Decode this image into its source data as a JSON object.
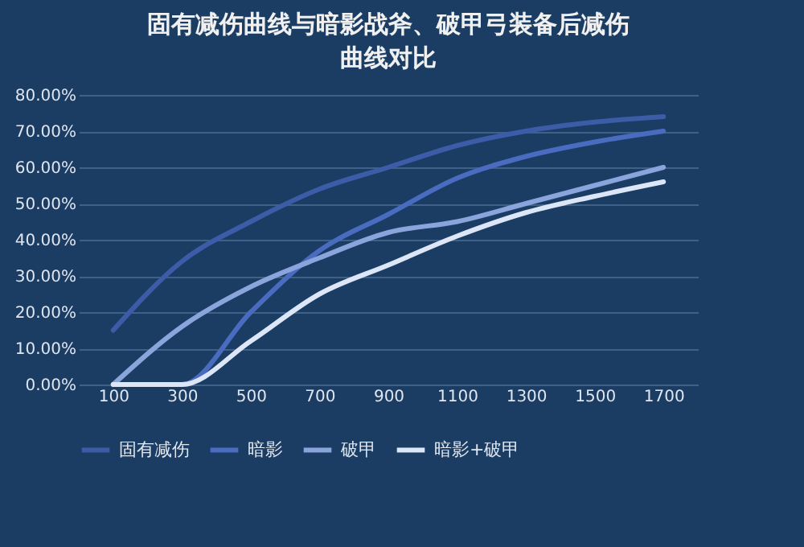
{
  "chart_data": {
    "type": "line",
    "title": "固有减伤曲线与暗影战斧、破甲弓装备后减伤曲线对比",
    "categories": [
      "100",
      "300",
      "500",
      "700",
      "900",
      "1100",
      "1300",
      "1500",
      "1700"
    ],
    "series": [
      {
        "name": "固有减伤",
        "color": "#3d5ca8",
        "values": [
          15,
          34,
          45,
          54,
          60,
          66,
          70,
          72.5,
          74
        ]
      },
      {
        "name": "暗影",
        "color": "#4a6cc0",
        "values": [
          0,
          0,
          20,
          37,
          47,
          57,
          63,
          67,
          70
        ]
      },
      {
        "name": "破甲",
        "color": "#8aa4dc",
        "values": [
          0,
          16,
          27,
          35,
          42,
          45,
          50,
          55,
          60
        ]
      },
      {
        "name": "暗影+破甲",
        "color": "#dce6f6",
        "values": [
          0,
          0,
          12,
          25,
          33,
          41,
          47.5,
          52,
          56
        ]
      }
    ],
    "ylim": [
      0,
      80
    ],
    "yticks": [
      {
        "value": 0,
        "label": "0.00%"
      },
      {
        "value": 10,
        "label": "10.00%"
      },
      {
        "value": 20,
        "label": "20.00%"
      },
      {
        "value": 30,
        "label": "30.00%"
      },
      {
        "value": 40,
        "label": "40.00%"
      },
      {
        "value": 50,
        "label": "50.00%"
      },
      {
        "value": 60,
        "label": "60.00%"
      },
      {
        "value": 70,
        "label": "70.00%"
      },
      {
        "value": 80,
        "label": "80.00%"
      }
    ],
    "grid": "y",
    "legend": "bottom left",
    "line_style": "solid"
  }
}
